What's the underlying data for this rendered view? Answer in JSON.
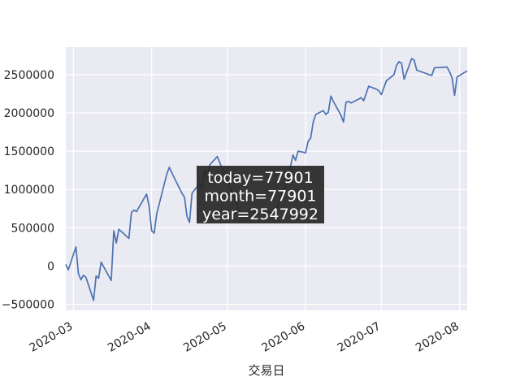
{
  "chart_data": {
    "type": "line",
    "xlabel": "交易日",
    "ylabel": "",
    "xlim": [
      "2020-02-27",
      "2020-08-04"
    ],
    "ylim": [
      -580000,
      2860000
    ],
    "grid": true,
    "x_ticks": [
      {
        "date": "2020-03-01",
        "label": "2020-03"
      },
      {
        "date": "2020-04-01",
        "label": "2020-04"
      },
      {
        "date": "2020-05-01",
        "label": "2020-05"
      },
      {
        "date": "2020-06-01",
        "label": "2020-06"
      },
      {
        "date": "2020-07-01",
        "label": "2020-07"
      },
      {
        "date": "2020-08-01",
        "label": "2020-08"
      }
    ],
    "y_ticks": [
      {
        "value": -500000,
        "label": "−500000"
      },
      {
        "value": 0,
        "label": "0"
      },
      {
        "value": 500000,
        "label": "500000"
      },
      {
        "value": 1000000,
        "label": "1000000"
      },
      {
        "value": 1500000,
        "label": "1500000"
      },
      {
        "value": 2000000,
        "label": "2000000"
      },
      {
        "value": 2500000,
        "label": "2500000"
      }
    ],
    "series": [
      {
        "color": "#4c72b0",
        "points": [
          [
            "2020-02-27",
            20000
          ],
          [
            "2020-02-28",
            -50000
          ],
          [
            "2020-03-02",
            250000
          ],
          [
            "2020-03-03",
            -100000
          ],
          [
            "2020-03-04",
            -180000
          ],
          [
            "2020-03-05",
            -120000
          ],
          [
            "2020-03-06",
            -150000
          ],
          [
            "2020-03-09",
            -450000
          ],
          [
            "2020-03-10",
            -130000
          ],
          [
            "2020-03-11",
            -160000
          ],
          [
            "2020-03-12",
            50000
          ],
          [
            "2020-03-16",
            -190000
          ],
          [
            "2020-03-17",
            460000
          ],
          [
            "2020-03-18",
            300000
          ],
          [
            "2020-03-19",
            480000
          ],
          [
            "2020-03-23",
            360000
          ],
          [
            "2020-03-24",
            700000
          ],
          [
            "2020-03-25",
            730000
          ],
          [
            "2020-03-26",
            710000
          ],
          [
            "2020-03-30",
            940000
          ],
          [
            "2020-03-31",
            780000
          ],
          [
            "2020-04-01",
            460000
          ],
          [
            "2020-04-02",
            430000
          ],
          [
            "2020-04-03",
            680000
          ],
          [
            "2020-04-07",
            1200000
          ],
          [
            "2020-04-08",
            1290000
          ],
          [
            "2020-04-09",
            1220000
          ],
          [
            "2020-04-10",
            1150000
          ],
          [
            "2020-04-13",
            950000
          ],
          [
            "2020-04-14",
            900000
          ],
          [
            "2020-04-15",
            650000
          ],
          [
            "2020-04-16",
            570000
          ],
          [
            "2020-04-17",
            950000
          ],
          [
            "2020-04-20",
            1080000
          ],
          [
            "2020-04-21",
            1000000
          ],
          [
            "2020-04-22",
            1250000
          ],
          [
            "2020-04-23",
            1150000
          ],
          [
            "2020-04-24",
            1320000
          ],
          [
            "2020-04-27",
            1430000
          ],
          [
            "2020-04-28",
            1350000
          ],
          [
            "2020-05-06",
            700000
          ],
          [
            "2020-05-20",
            700000
          ],
          [
            "2020-05-22",
            900000
          ],
          [
            "2020-05-25",
            1100000
          ],
          [
            "2020-05-26",
            1300000
          ],
          [
            "2020-05-27",
            1450000
          ],
          [
            "2020-05-28",
            1380000
          ],
          [
            "2020-05-29",
            1500000
          ],
          [
            "2020-06-01",
            1480000
          ],
          [
            "2020-06-02",
            1630000
          ],
          [
            "2020-06-03",
            1670000
          ],
          [
            "2020-06-04",
            1880000
          ],
          [
            "2020-06-05",
            1980000
          ],
          [
            "2020-06-08",
            2030000
          ],
          [
            "2020-06-09",
            1980000
          ],
          [
            "2020-06-10",
            2010000
          ],
          [
            "2020-06-11",
            2220000
          ],
          [
            "2020-06-12",
            2150000
          ],
          [
            "2020-06-15",
            1970000
          ],
          [
            "2020-06-16",
            1880000
          ],
          [
            "2020-06-17",
            2140000
          ],
          [
            "2020-06-18",
            2150000
          ],
          [
            "2020-06-19",
            2130000
          ],
          [
            "2020-06-22",
            2180000
          ],
          [
            "2020-06-23",
            2200000
          ],
          [
            "2020-06-24",
            2160000
          ],
          [
            "2020-06-26",
            2350000
          ],
          [
            "2020-06-29",
            2310000
          ],
          [
            "2020-06-30",
            2290000
          ],
          [
            "2020-07-01",
            2240000
          ],
          [
            "2020-07-02",
            2330000
          ],
          [
            "2020-07-03",
            2420000
          ],
          [
            "2020-07-06",
            2500000
          ],
          [
            "2020-07-07",
            2620000
          ],
          [
            "2020-07-08",
            2670000
          ],
          [
            "2020-07-09",
            2650000
          ],
          [
            "2020-07-10",
            2440000
          ],
          [
            "2020-07-13",
            2710000
          ],
          [
            "2020-07-14",
            2690000
          ],
          [
            "2020-07-15",
            2560000
          ],
          [
            "2020-07-20",
            2500000
          ],
          [
            "2020-07-21",
            2490000
          ],
          [
            "2020-07-22",
            2590000
          ],
          [
            "2020-07-27",
            2600000
          ],
          [
            "2020-07-28",
            2540000
          ],
          [
            "2020-07-29",
            2460000
          ],
          [
            "2020-07-30",
            2230000
          ],
          [
            "2020-07-31",
            2470000
          ],
          [
            "2020-08-04",
            2550000
          ]
        ]
      }
    ],
    "tooltip": {
      "lines": [
        "today=77901",
        "month=77901",
        "year=2547992"
      ],
      "background": "#262626"
    }
  }
}
